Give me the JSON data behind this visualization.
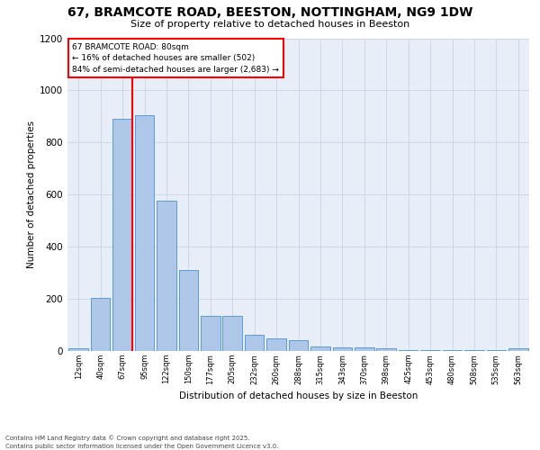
{
  "title_line1": "67, BRAMCOTE ROAD, BEESTON, NOTTINGHAM, NG9 1DW",
  "title_line2": "Size of property relative to detached houses in Beeston",
  "xlabel": "Distribution of detached houses by size in Beeston",
  "ylabel": "Number of detached properties",
  "categories": [
    "12sqm",
    "40sqm",
    "67sqm",
    "95sqm",
    "122sqm",
    "150sqm",
    "177sqm",
    "205sqm",
    "232sqm",
    "260sqm",
    "288sqm",
    "315sqm",
    "343sqm",
    "370sqm",
    "398sqm",
    "425sqm",
    "453sqm",
    "480sqm",
    "508sqm",
    "535sqm",
    "563sqm"
  ],
  "bar_heights": [
    10,
    205,
    890,
    905,
    575,
    310,
    135,
    135,
    63,
    47,
    40,
    18,
    15,
    15,
    10,
    5,
    3,
    2,
    5,
    3,
    10
  ],
  "bar_color": "#aec6e8",
  "bar_edge_color": "#5b9bd5",
  "grid_color": "#d0d8e8",
  "vline_color": "red",
  "vline_x": 2.44,
  "annotation_text": "67 BRAMCOTE ROAD: 80sqm\n← 16% of detached houses are smaller (502)\n84% of semi-detached houses are larger (2,683) →",
  "annotation_box_color": "white",
  "annotation_box_edge": "red",
  "ylim_max": 1200,
  "yticks": [
    0,
    200,
    400,
    600,
    800,
    1000,
    1200
  ],
  "bg_color": "#e8eef8",
  "footer": "Contains HM Land Registry data © Crown copyright and database right 2025.\nContains public sector information licensed under the Open Government Licence v3.0."
}
